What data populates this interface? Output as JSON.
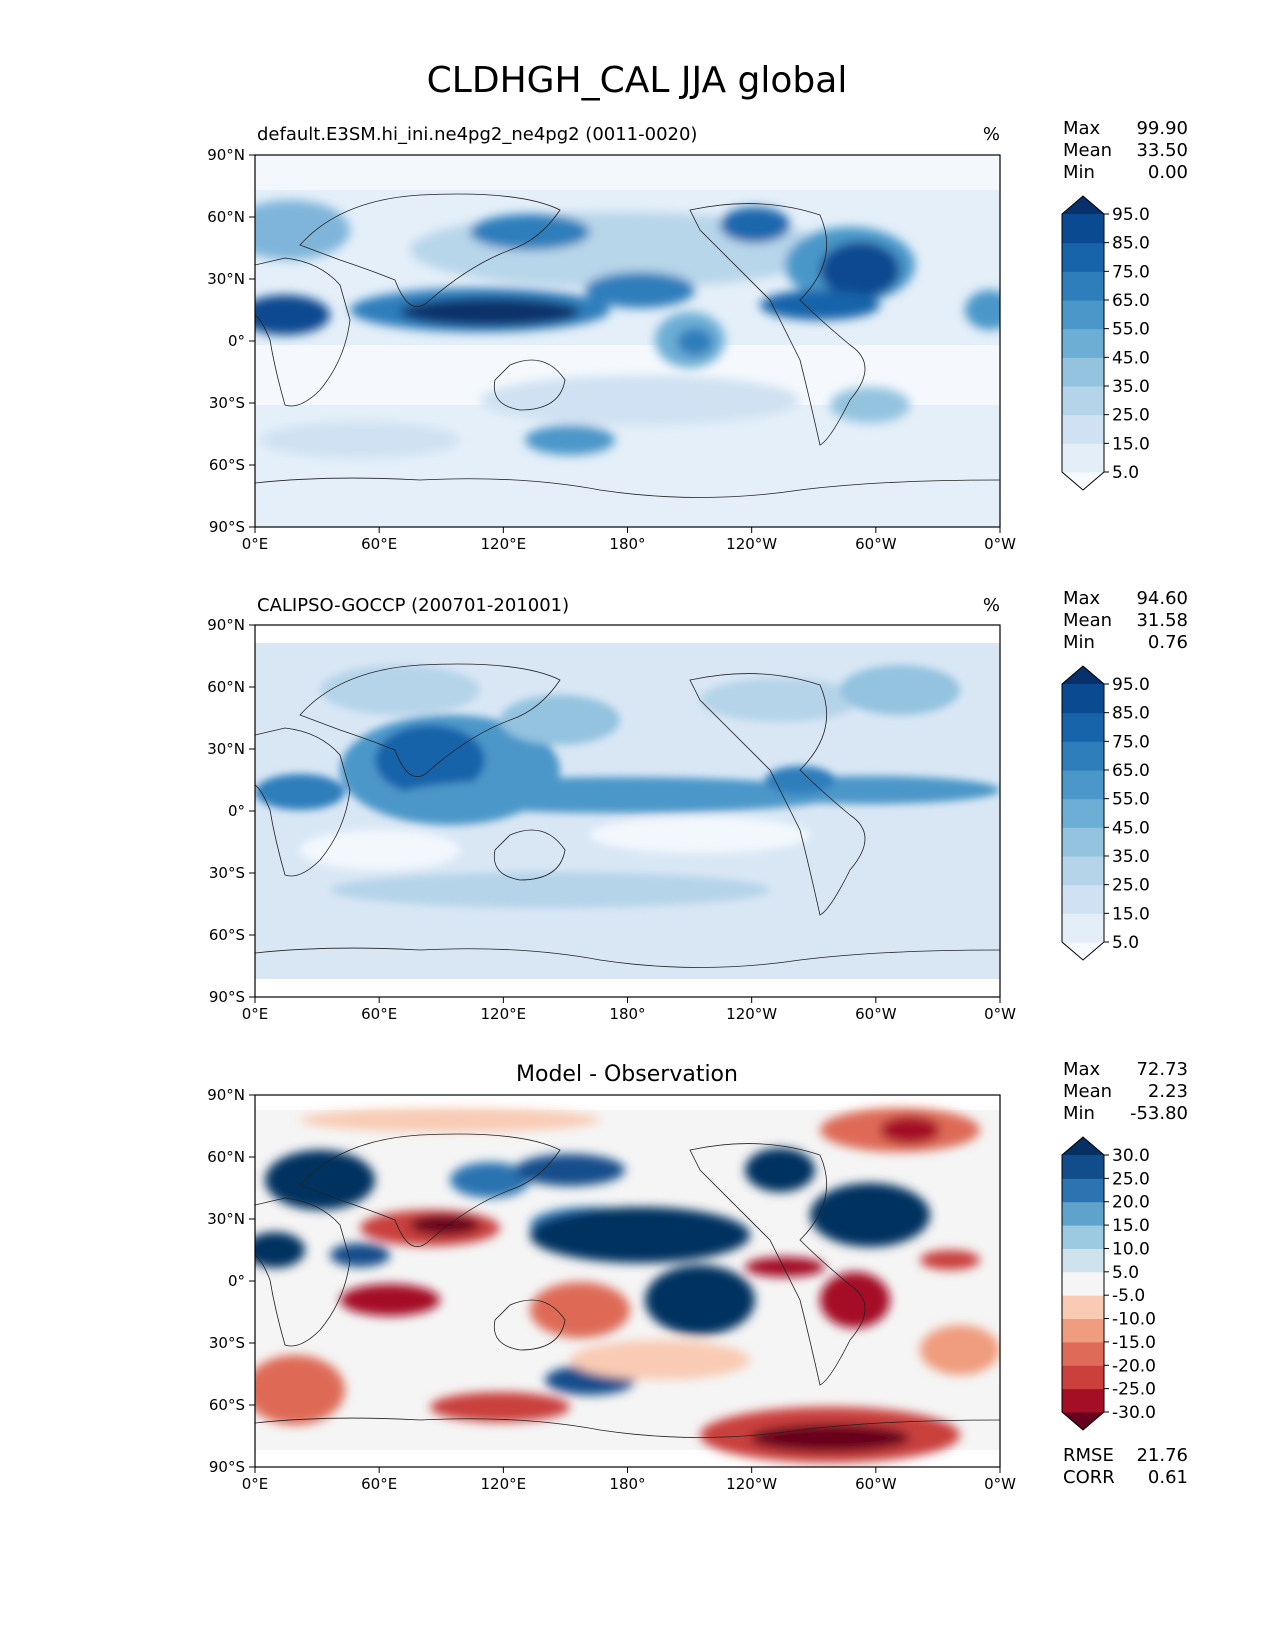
{
  "figure": {
    "title": "CLDHGH_CAL JJA global"
  },
  "x_ticks": [
    "0°E",
    "60°E",
    "120°E",
    "180°",
    "120°W",
    "60°W",
    "0°W"
  ],
  "y_ticks": [
    "90°N",
    "60°N",
    "30°N",
    "0°",
    "30°S",
    "60°S",
    "90°S"
  ],
  "panels": [
    {
      "id": "test",
      "left_title": "default.E3SM.hi_ini.ne4pg2_ne4pg2 (0011-0020)",
      "center_title": "",
      "units": "%",
      "stats": {
        "max_label": "Max",
        "max": "99.90",
        "mean_label": "Mean",
        "mean": "33.50",
        "min_label": "Min",
        "min": "0.00"
      },
      "colorbar": {
        "levels": [
          "5.0",
          "15.0",
          "25.0",
          "35.0",
          "45.0",
          "55.0",
          "65.0",
          "75.0",
          "85.0",
          "95.0"
        ],
        "colors": [
          "#f7fbff",
          "#e3eef9",
          "#cfe1f2",
          "#b5d4e9",
          "#93c3df",
          "#6daed5",
          "#4b97c9",
          "#2f7ebc",
          "#1864aa",
          "#0a4a90",
          "#08306b"
        ]
      }
    },
    {
      "id": "reference",
      "left_title": "CALIPSO-GOCCP (200701-201001)",
      "center_title": "",
      "units": "%",
      "stats": {
        "max_label": "Max",
        "max": "94.60",
        "mean_label": "Mean",
        "mean": "31.58",
        "min_label": "Min",
        "min": "0.76"
      },
      "colorbar": {
        "levels": [
          "5.0",
          "15.0",
          "25.0",
          "35.0",
          "45.0",
          "55.0",
          "65.0",
          "75.0",
          "85.0",
          "95.0"
        ],
        "colors": [
          "#f7fbff",
          "#e3eef9",
          "#cfe1f2",
          "#b5d4e9",
          "#93c3df",
          "#6daed5",
          "#4b97c9",
          "#2f7ebc",
          "#1864aa",
          "#0a4a90",
          "#08306b"
        ]
      }
    },
    {
      "id": "diff",
      "left_title": "",
      "center_title": "Model - Observation",
      "units": "",
      "stats": {
        "max_label": "Max",
        "max": "72.73",
        "mean_label": "Mean",
        "mean": "2.23",
        "min_label": "Min",
        "min": "-53.80"
      },
      "metrics": {
        "rmse_label": "RMSE",
        "rmse": "21.76",
        "corr_label": "CORR",
        "corr": "0.61"
      },
      "colorbar": {
        "levels": [
          "-30.0",
          "-25.0",
          "-20.0",
          "-15.0",
          "-10.0",
          "-5.0",
          "5.0",
          "10.0",
          "15.0",
          "20.0",
          "25.0",
          "30.0"
        ],
        "colors": [
          "#67001f",
          "#a50f26",
          "#c9403d",
          "#de6b57",
          "#f09c7e",
          "#f9cbb4",
          "#f5f5f5",
          "#cfe3ef",
          "#9ccae0",
          "#5fa3cc",
          "#2c73b1",
          "#124d8b",
          "#053061"
        ]
      }
    }
  ]
}
